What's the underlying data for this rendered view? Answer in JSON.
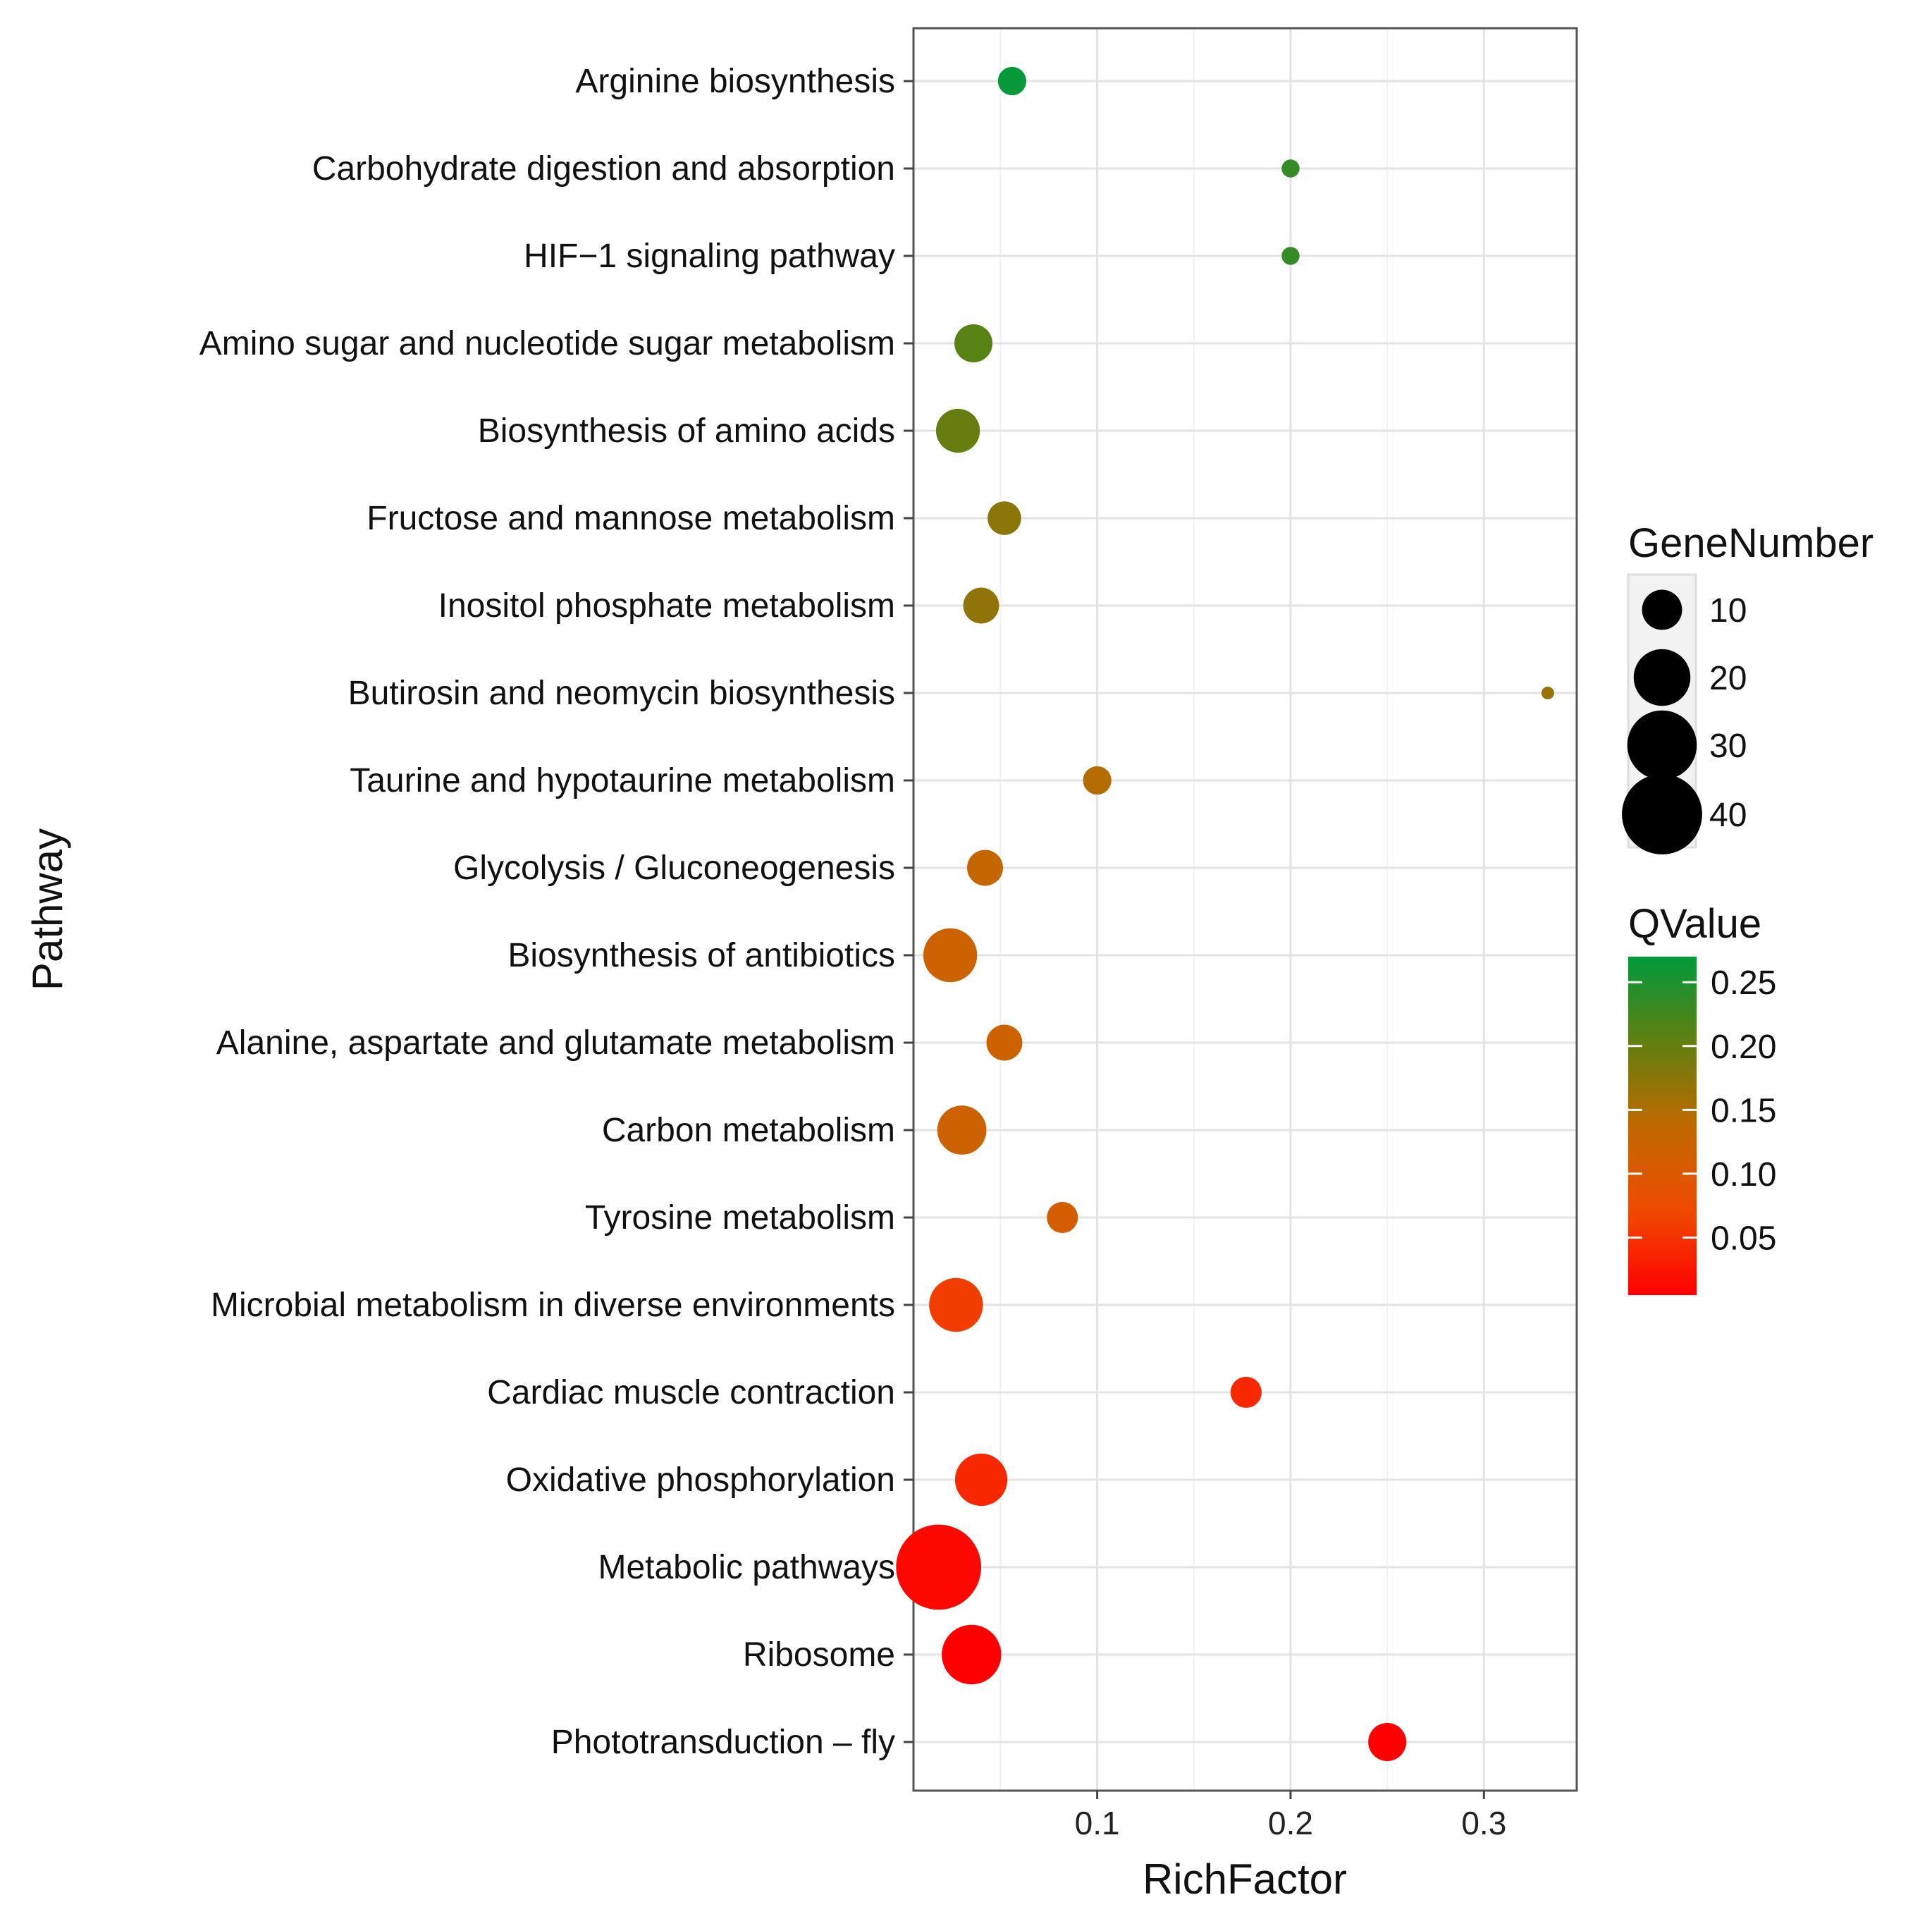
{
  "chart_data": {
    "type": "scatter",
    "title": "",
    "xlabel": "RichFactor",
    "ylabel": "Pathway",
    "xlim": [
      0.005,
      0.348
    ],
    "xticks": [
      "0.1",
      "0.2",
      "0.3"
    ],
    "xtick_values": [
      0.1,
      0.2,
      0.3
    ],
    "grid": true,
    "points": [
      {
        "pathway": "Arginine biosynthesis",
        "richfactor": 0.056,
        "gene_number": 5,
        "qvalue": 0.265
      },
      {
        "pathway": "Carbohydrate digestion and absorption",
        "richfactor": 0.2,
        "gene_number": 2,
        "qvalue": 0.235
      },
      {
        "pathway": "HIF−1 signaling pathway",
        "richfactor": 0.2,
        "gene_number": 2,
        "qvalue": 0.235
      },
      {
        "pathway": "Amino sugar and nucleotide sugar metabolism",
        "richfactor": 0.036,
        "gene_number": 9,
        "qvalue": 0.21
      },
      {
        "pathway": "Biosynthesis of amino acids",
        "richfactor": 0.028,
        "gene_number": 12,
        "qvalue": 0.2
      },
      {
        "pathway": "Fructose and mannose metabolism",
        "richfactor": 0.052,
        "gene_number": 7,
        "qvalue": 0.175
      },
      {
        "pathway": "Inositol phosphate metabolism",
        "richfactor": 0.04,
        "gene_number": 8,
        "qvalue": 0.17
      },
      {
        "pathway": "Butirosin and neomycin biosynthesis",
        "richfactor": 0.333,
        "gene_number": 1,
        "qvalue": 0.165
      },
      {
        "pathway": "Taurine and hypotaurine metabolism",
        "richfactor": 0.1,
        "gene_number": 5,
        "qvalue": 0.145
      },
      {
        "pathway": "Glycolysis / Gluconeogenesis",
        "richfactor": 0.042,
        "gene_number": 8,
        "qvalue": 0.13
      },
      {
        "pathway": "Biosynthesis of antibiotics",
        "richfactor": 0.024,
        "gene_number": 18,
        "qvalue": 0.12
      },
      {
        "pathway": "Alanine, aspartate and glutamate metabolism",
        "richfactor": 0.052,
        "gene_number": 8,
        "qvalue": 0.12
      },
      {
        "pathway": "Carbon metabolism",
        "richfactor": 0.03,
        "gene_number": 15,
        "qvalue": 0.12
      },
      {
        "pathway": "Tyrosine metabolism",
        "richfactor": 0.082,
        "gene_number": 6,
        "qvalue": 0.11
      },
      {
        "pathway": "Microbial metabolism in diverse environments",
        "richfactor": 0.027,
        "gene_number": 18,
        "qvalue": 0.06
      },
      {
        "pathway": "Cardiac muscle contraction",
        "richfactor": 0.177,
        "gene_number": 6,
        "qvalue": 0.04
      },
      {
        "pathway": "Oxidative phosphorylation",
        "richfactor": 0.04,
        "gene_number": 17,
        "qvalue": 0.04
      },
      {
        "pathway": "Metabolic pathways",
        "richfactor": 0.018,
        "gene_number": 45,
        "qvalue": 0.012
      },
      {
        "pathway": "Ribosome",
        "richfactor": 0.035,
        "gene_number": 22,
        "qvalue": 0.005
      },
      {
        "pathway": "Phototransduction – fly",
        "richfactor": 0.25,
        "gene_number": 9,
        "qvalue": 0.005
      }
    ],
    "legend_size": {
      "title": "GeneNumber",
      "values": [
        10,
        20,
        30,
        40
      ],
      "labels": [
        "10",
        "20",
        "30",
        "40"
      ]
    },
    "legend_color": {
      "title": "QValue",
      "range": [
        0.005,
        0.27
      ],
      "ticks": [
        0.25,
        0.2,
        0.15,
        0.1,
        0.05
      ],
      "labels": [
        "0.25",
        "0.20",
        "0.15",
        "0.10",
        "0.05"
      ],
      "low_color": "#ff0000",
      "high_color": "#009a3c"
    }
  }
}
